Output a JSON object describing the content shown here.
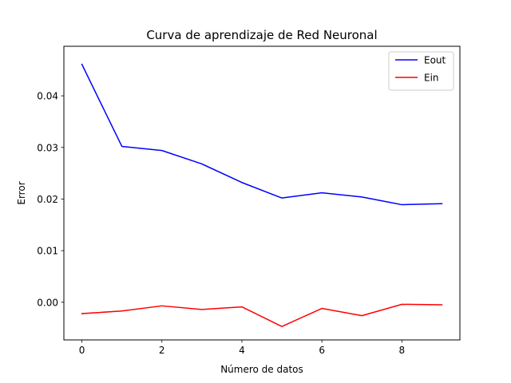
{
  "chart_data": {
    "type": "line",
    "title": "Curva de aprendizaje de Red Neuronal",
    "xlabel": "Número de datos",
    "ylabel": "Error",
    "x": [
      0,
      1,
      2,
      3,
      4,
      5,
      6,
      7,
      8,
      9
    ],
    "xlim": [
      -0.45,
      9.45
    ],
    "ylim": [
      -0.0073,
      0.0496
    ],
    "xticks": [
      0,
      2,
      4,
      6,
      8
    ],
    "xtick_labels": [
      "0",
      "2",
      "4",
      "6",
      "8"
    ],
    "yticks": [
      0.0,
      0.01,
      0.02,
      0.03,
      0.04
    ],
    "ytick_labels": [
      "0.00",
      "0.01",
      "0.02",
      "0.03",
      "0.04"
    ],
    "grid": false,
    "legend_position": "top-right",
    "series": [
      {
        "name": "Eout",
        "color": "#0000ff",
        "values": [
          0.0461,
          0.0302,
          0.0294,
          0.0268,
          0.0232,
          0.0202,
          0.0212,
          0.0204,
          0.0189,
          0.0191
        ]
      },
      {
        "name": "Ein",
        "color": "#ff0000",
        "values": [
          -0.0022,
          -0.0017,
          -0.0007,
          -0.0014,
          -0.0009,
          -0.0047,
          -0.0012,
          -0.0026,
          -0.0004,
          -0.0005
        ]
      }
    ]
  }
}
